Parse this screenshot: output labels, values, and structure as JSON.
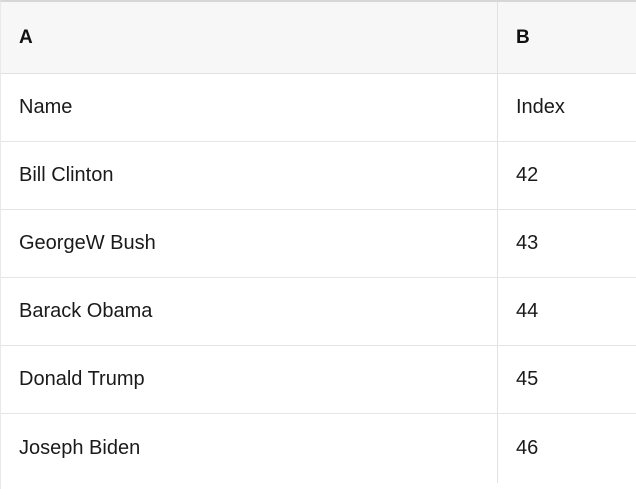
{
  "table": {
    "column_headers": [
      {
        "label": "A"
      },
      {
        "label": "B"
      }
    ],
    "rows": [
      {
        "a": "Name",
        "b": "Index"
      },
      {
        "a": "Bill Clinton",
        "b": "42"
      },
      {
        "a": "GeorgeW Bush",
        "b": "43"
      },
      {
        "a": "Barack Obama",
        "b": "44"
      },
      {
        "a": "Donald Trump",
        "b": "45"
      },
      {
        "a": "Joseph Biden",
        "b": "46"
      }
    ]
  },
  "colors": {
    "header_background": "#f7f7f7",
    "row_background": "#ffffff",
    "grid_line": "#e1e1e1",
    "top_border": "#d6d6d6",
    "text": "#1a1a1a"
  }
}
